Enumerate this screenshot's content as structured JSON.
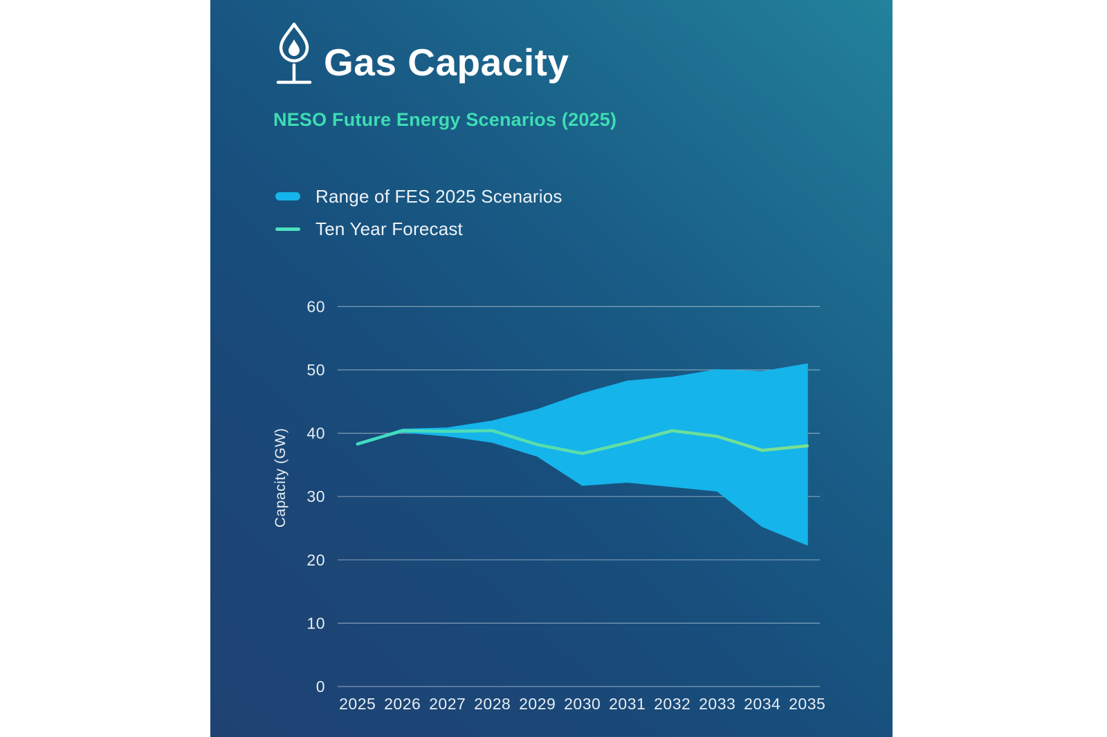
{
  "header": {
    "title": "Gas Capacity",
    "subtitle": "NESO Future Energy Scenarios (2025)",
    "icon": "gas-flame-icon"
  },
  "legend": {
    "items": [
      {
        "label": "Range of FES 2025 Scenarios",
        "swatch": "band",
        "color": "#15b4ea"
      },
      {
        "label": "Ten Year Forecast",
        "swatch": "line",
        "color": "#4fe0bd"
      }
    ]
  },
  "chart_data": {
    "type": "area",
    "title": "Gas Capacity",
    "subtitle": "NESO Future Energy Scenarios (2025)",
    "x": [
      2025,
      2026,
      2027,
      2028,
      2029,
      2030,
      2031,
      2032,
      2033,
      2034,
      2035
    ],
    "series": [
      {
        "name": "Range of FES 2025 Scenarios",
        "type": "band",
        "upper": [
          38.3,
          40.6,
          40.8,
          41.9,
          43.7,
          46.2,
          48.2,
          48.8,
          50.0,
          49.7,
          50.9
        ],
        "lower": [
          38.3,
          40.2,
          39.6,
          38.6,
          36.4,
          31.8,
          32.3,
          31.6,
          30.9,
          25.3,
          22.4
        ],
        "color": "#15b4ea"
      },
      {
        "name": "Ten Year Forecast",
        "type": "line",
        "values": [
          38.3,
          40.4,
          40.3,
          40.4,
          38.2,
          36.8,
          38.5,
          40.4,
          39.5,
          37.3,
          38.0
        ],
        "color_start": "#3fdcc4",
        "color_end": "#7ce08c"
      }
    ],
    "xlabel": "",
    "ylabel": "Capacity (GW)",
    "ylim": [
      0,
      60
    ],
    "yticks": [
      0,
      10,
      20,
      30,
      40,
      50,
      60
    ],
    "grid": true,
    "legend_position": "top-left"
  },
  "colors": {
    "background_top_right": "#22829c",
    "background_bottom_left": "#1e4373",
    "title_text": "#ffffff",
    "subtitle_text": "#3eddb2",
    "axis_text": "#e6edf3",
    "gridline": "rgba(255,255,255,0.45)"
  }
}
